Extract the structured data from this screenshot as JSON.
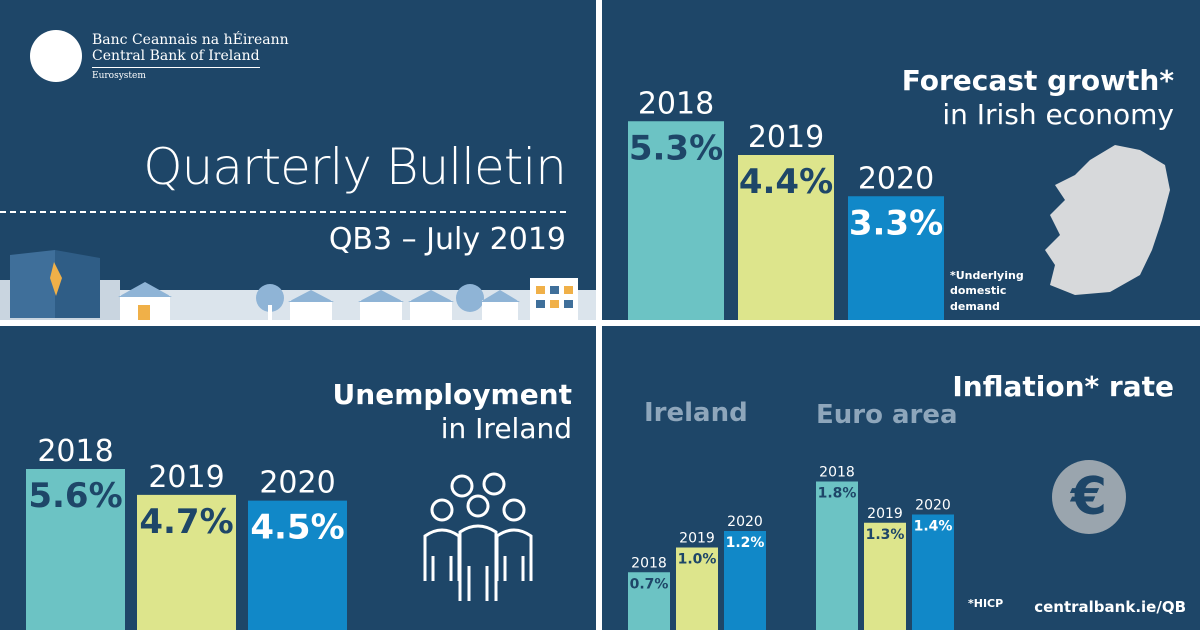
{
  "header": {
    "org_name_ga": "Banc Ceannais na hÉireann",
    "org_name_en": "Central Bank of Ireland",
    "org_sub": "Eurosystem",
    "title": "Quarterly Bulletin",
    "subtitle": "QB3 – July 2019"
  },
  "growth_panel": {
    "title_bold": "Forecast growth*",
    "title_light": "in Irish economy",
    "footnote": "*Underlying domestic demand"
  },
  "unemployment_panel": {
    "title_bold": "Unemployment",
    "title_light": "in Ireland"
  },
  "inflation_panel": {
    "title": "Inflation* rate",
    "footnote": "*HICP",
    "url": "centralbank.ie/QB",
    "icon": "euro-icon"
  },
  "colors": {
    "background": "#1e4668",
    "teal": "#6cc3c4",
    "yellow": "#dde58c",
    "blue": "#1188c8",
    "label_dark": "#1e4668",
    "label_light": "#ffffff"
  },
  "chart_data": [
    {
      "type": "bar",
      "title": "Forecast growth* in Irish economy",
      "categories": [
        "2018",
        "2019",
        "2020"
      ],
      "values": [
        5.3,
        4.4,
        3.3
      ],
      "value_labels": [
        "5.3%",
        "4.4%",
        "3.3%"
      ],
      "ylim": [
        0,
        8
      ]
    },
    {
      "type": "bar",
      "title": "Unemployment in Ireland",
      "categories": [
        "2018",
        "2019",
        "2020"
      ],
      "values": [
        5.6,
        4.7,
        4.5
      ],
      "value_labels": [
        "5.6%",
        "4.7%",
        "4.5%"
      ],
      "ylim": [
        0,
        8
      ]
    },
    {
      "type": "bar",
      "title": "Inflation* rate",
      "categories": [
        "2018",
        "2019",
        "2020"
      ],
      "series": [
        {
          "name": "Ireland",
          "values": [
            0.7,
            1.0,
            1.2
          ],
          "value_labels": [
            "0.7%",
            "1.0%",
            "1.2%"
          ]
        },
        {
          "name": "Euro area",
          "values": [
            1.8,
            1.3,
            1.4
          ],
          "value_labels": [
            "1.8%",
            "1.3%",
            "1.4%"
          ]
        }
      ],
      "ylim": [
        0,
        2
      ]
    }
  ]
}
